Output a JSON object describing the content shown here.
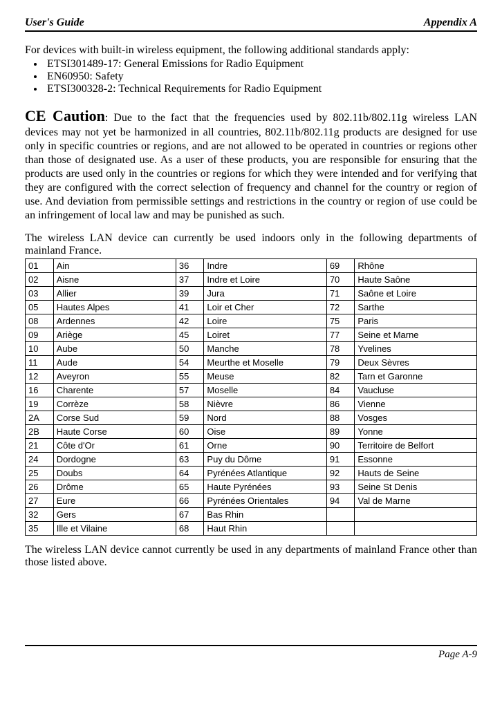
{
  "header": {
    "left": "User's Guide",
    "right": "Appendix A"
  },
  "intro": "For devices with built-in wireless equipment, the following additional standards apply:",
  "bullets": [
    "ETSI301489-17: General Emissions for Radio Equipment",
    "EN60950: Safety",
    "ETSI300328-2: Technical Requirements for Radio Equipment"
  ],
  "ce": {
    "title": "CE Caution",
    "body": ": Due to the fact that the frequencies used by 802.11b/802.11g wireless LAN devices may not yet be harmonized in all countries, 802.11b/802.11g products are designed for use only in specific countries or regions, and are not allowed to be operated in countries or regions other than those of designated use. As a user of these products, you are responsible for ensuring that the products are used only in the countries or regions for which they were intended and for verifying that they are configured with the correct selection of frequency and channel for the country or region of use. And deviation from permissible settings and restrictions in the country or region of use could be an infringement of local law and may be punished as such."
  },
  "para2": "The wireless LAN device can currently be used indoors only in the following departments of mainland France.",
  "table": {
    "rows": [
      [
        "01",
        "Ain",
        "36",
        "Indre",
        "69",
        "Rhône"
      ],
      [
        "02",
        "Aisne",
        "37",
        "Indre et Loire",
        "70",
        "Haute Saône"
      ],
      [
        "03",
        "Allier",
        "39",
        "Jura",
        "71",
        "Saône et Loire"
      ],
      [
        "05",
        "Hautes Alpes",
        "41",
        "Loir et Cher",
        "72",
        "Sarthe"
      ],
      [
        "08",
        "Ardennes",
        "42",
        "Loire",
        "75",
        "Paris"
      ],
      [
        "09",
        "Ariège",
        "45",
        "Loiret",
        "77",
        "Seine et Marne"
      ],
      [
        "10",
        "Aube",
        "50",
        "Manche",
        "78",
        "Yvelines"
      ],
      [
        "11",
        "Aude",
        "54",
        "Meurthe et Moselle",
        "79",
        "Deux Sèvres"
      ],
      [
        "12",
        "Aveyron",
        "55",
        "Meuse",
        "82",
        "Tarn et Garonne"
      ],
      [
        "16",
        "Charente",
        "57",
        "Moselle",
        "84",
        "Vaucluse"
      ],
      [
        "19",
        "Corrèze",
        "58",
        "Nièvre",
        "86",
        "Vienne"
      ],
      [
        "2A",
        "Corse Sud",
        "59",
        "Nord",
        "88",
        "Vosges"
      ],
      [
        "2B",
        "Haute Corse",
        "60",
        "Oise",
        "89",
        "Yonne"
      ],
      [
        "21",
        "Côte d'Or",
        "61",
        "Orne",
        "90",
        "Territoire de Belfort"
      ],
      [
        "24",
        "Dordogne",
        "63",
        "Puy du Dôme",
        "91",
        "Essonne"
      ],
      [
        "25",
        "Doubs",
        "64",
        "Pyrénées Atlantique",
        "92",
        "Hauts de Seine"
      ],
      [
        "26",
        "Drôme",
        "65",
        "Haute Pyrénées",
        "93",
        "Seine St Denis"
      ],
      [
        "27",
        "Eure",
        "66",
        "Pyrénées Orientales",
        "94",
        "Val de Marne"
      ],
      [
        "32",
        "Gers",
        "67",
        "Bas Rhin",
        "",
        ""
      ],
      [
        "35",
        "Ille et Vilaine",
        "68",
        "Haut Rhin",
        "",
        ""
      ]
    ]
  },
  "after_table": "The wireless LAN device cannot currently be used in any departments of mainland France other than those listed above.",
  "footer": "Page A-9"
}
